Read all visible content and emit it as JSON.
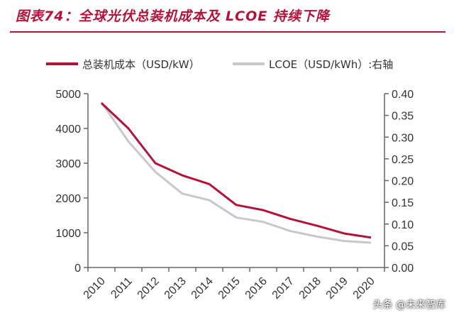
{
  "figure_title": "图表74：全球光伏总装机成本及 LCOE 持续下降",
  "watermark": "头条 @未来智库",
  "colors": {
    "accent": "#b5123a",
    "series_primary": "#b5123a",
    "series_secondary": "#c8c8c8"
  },
  "chart_data": {
    "type": "line",
    "x": [
      "2010",
      "2011",
      "2012",
      "2013",
      "2014",
      "2015",
      "2016",
      "2017",
      "2018",
      "2019",
      "2020"
    ],
    "series": [
      {
        "name": "总装机成本（USD/kW）",
        "axis": "left",
        "values": [
          4730,
          4000,
          3000,
          2650,
          2400,
          1800,
          1650,
          1400,
          1200,
          980,
          860
        ]
      },
      {
        "name": "LCOE（USD/kWh）:右轴",
        "axis": "right",
        "values": [
          0.38,
          0.29,
          0.22,
          0.17,
          0.155,
          0.115,
          0.105,
          0.084,
          0.071,
          0.061,
          0.057
        ]
      }
    ],
    "ylim_left": [
      0,
      5000
    ],
    "yticks_left": [
      "0",
      "1000",
      "2000",
      "3000",
      "4000",
      "5000"
    ],
    "ylim_right": [
      0,
      0.4
    ],
    "yticks_right": [
      "0.00",
      "0.05",
      "0.10",
      "0.15",
      "0.20",
      "0.25",
      "0.30",
      "0.35",
      "0.40"
    ],
    "grid": false,
    "legend_position": "top"
  }
}
